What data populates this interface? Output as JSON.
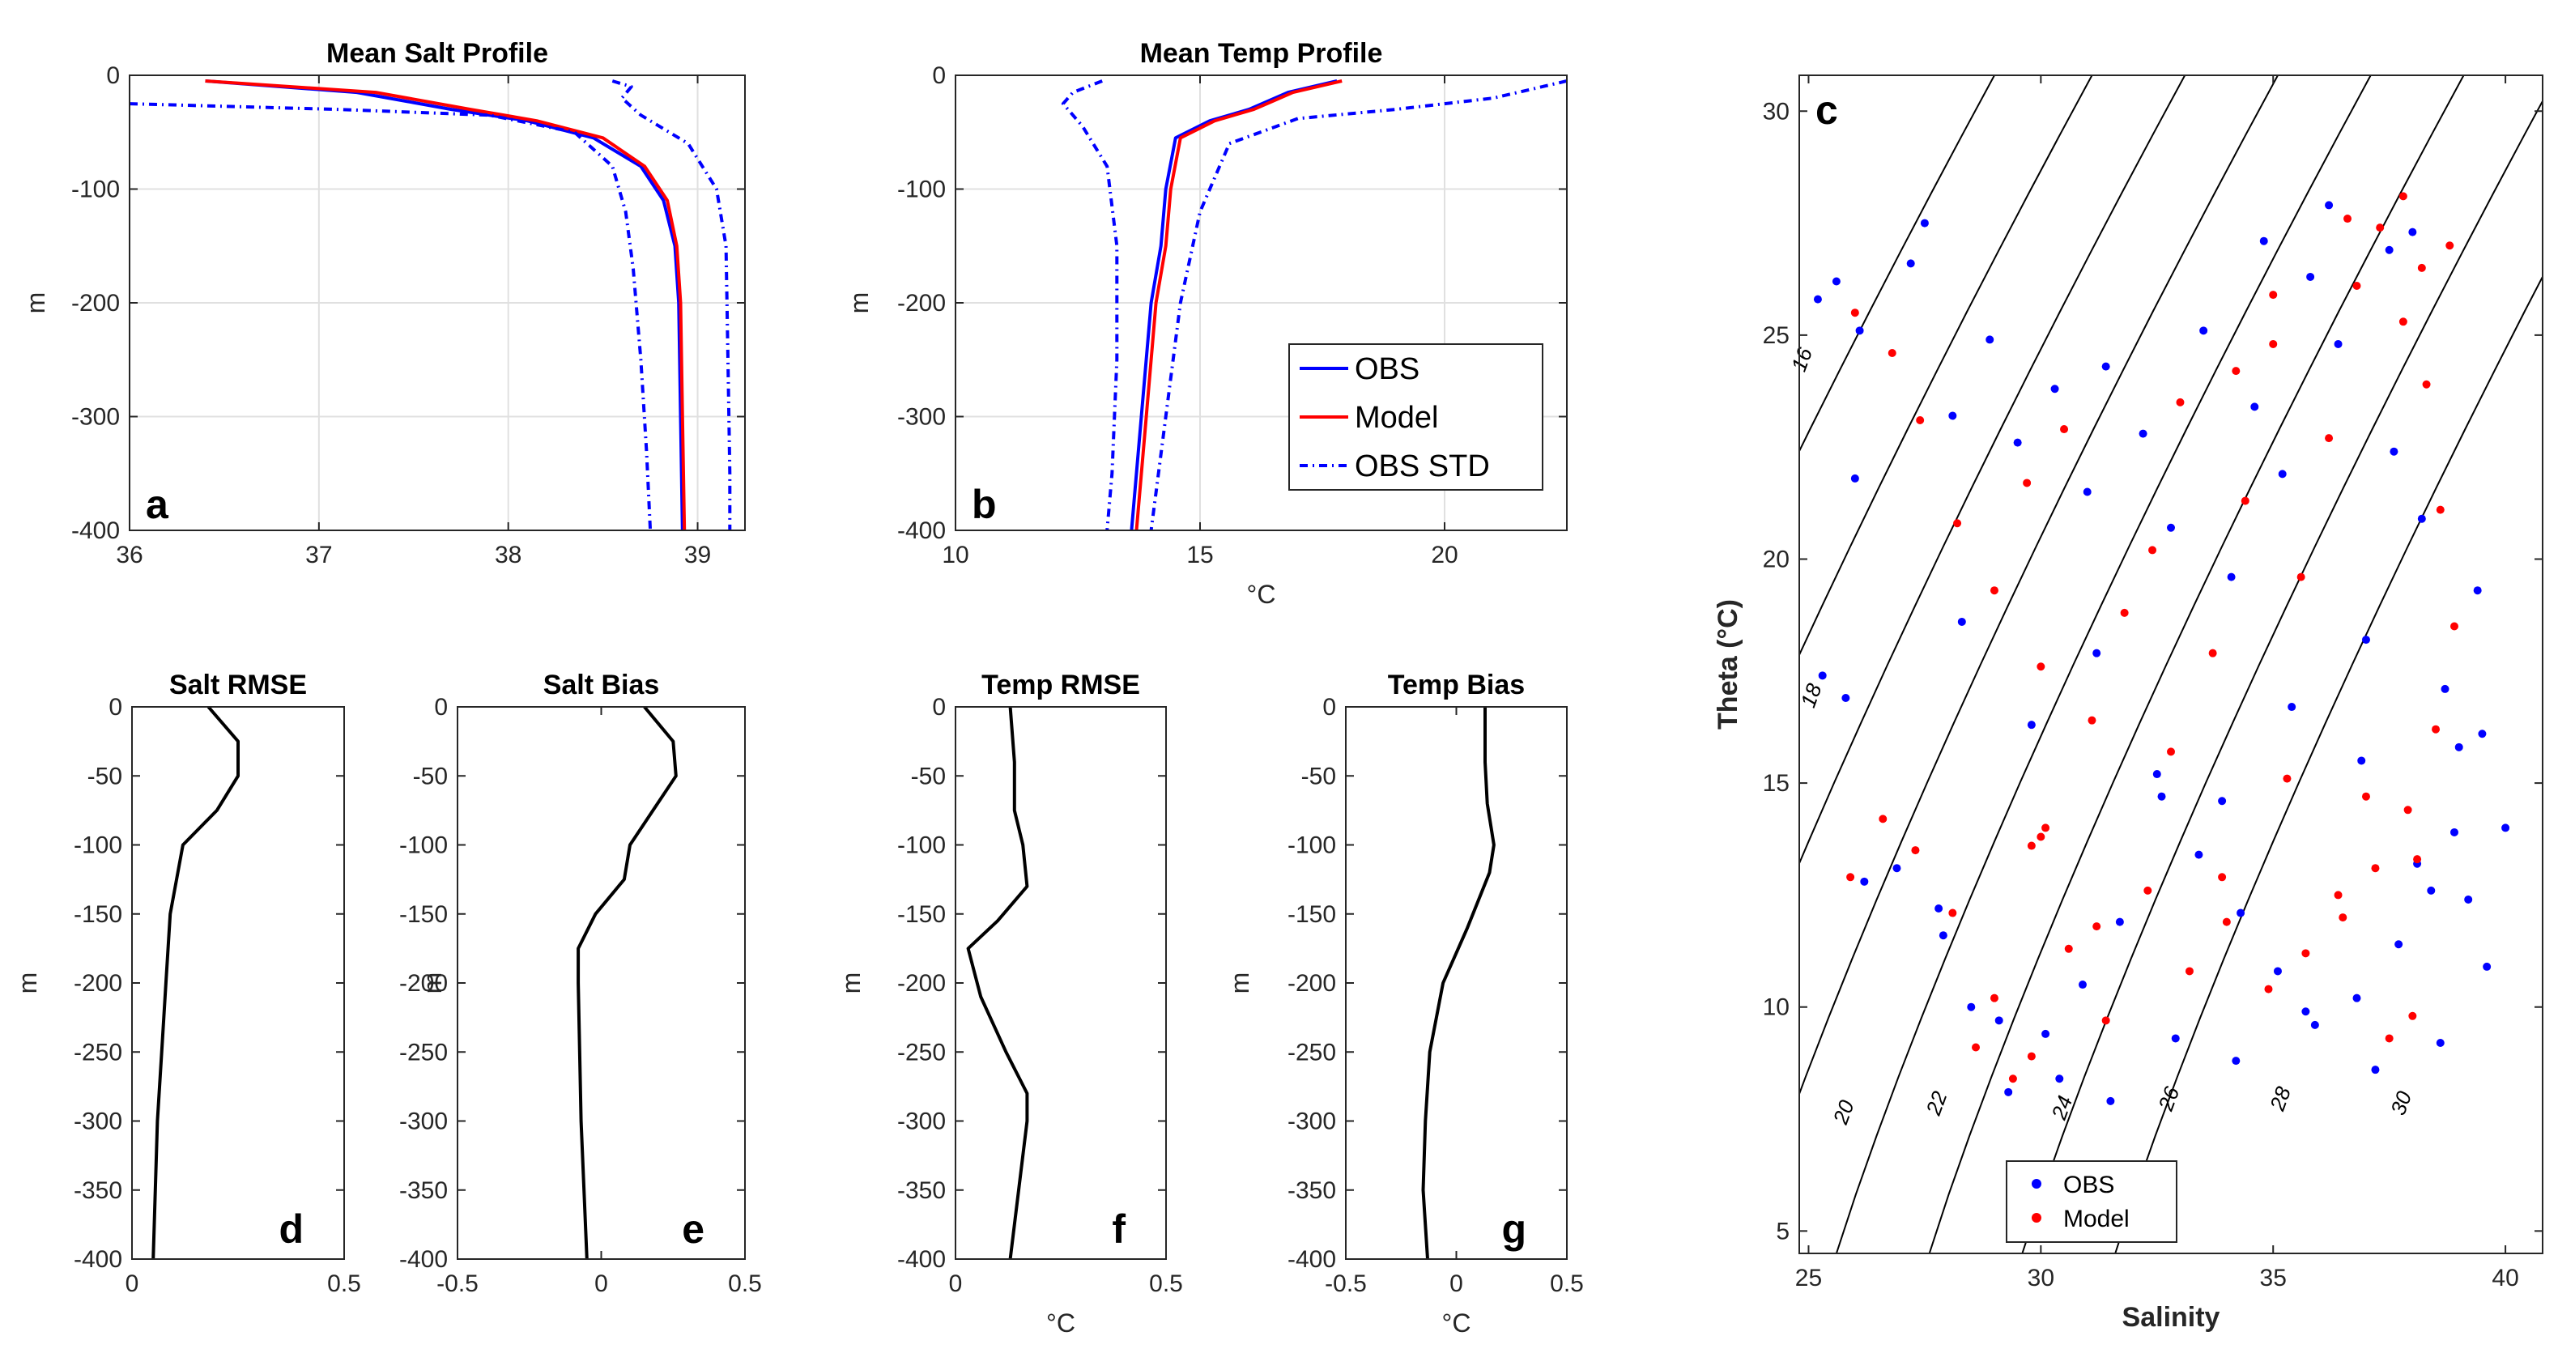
{
  "figure": {
    "panel_letters": [
      "a",
      "b",
      "c",
      "d",
      "e",
      "f",
      "g"
    ],
    "celsius_unit": "°C"
  },
  "chart_data": [
    {
      "id": "a",
      "type": "line",
      "title": "Mean Salt Profile",
      "xlabel": "",
      "ylabel": "m",
      "xlim": [
        36,
        39.25
      ],
      "ylim": [
        -400,
        0
      ],
      "xticks": [
        "36",
        "37",
        "38",
        "39"
      ],
      "yticks": [
        "0",
        "-100",
        "-200",
        "-300",
        "-400"
      ],
      "grid": true,
      "series": [
        {
          "name": "OBS",
          "color": "#0000ff",
          "style": "solid",
          "x": [
            36.4,
            37.2,
            37.7,
            38.1,
            38.45,
            38.7,
            38.82,
            38.88,
            38.9,
            38.91,
            38.92
          ],
          "y": [
            -5,
            -15,
            -30,
            -40,
            -55,
            -80,
            -110,
            -150,
            -200,
            -300,
            -400
          ]
        },
        {
          "name": "Model",
          "color": "#ff0000",
          "style": "solid",
          "x": [
            36.4,
            37.3,
            37.8,
            38.15,
            38.5,
            38.72,
            38.84,
            38.89,
            38.91,
            38.92,
            38.93
          ],
          "y": [
            -5,
            -15,
            -30,
            -40,
            -55,
            -80,
            -110,
            -150,
            -200,
            -300,
            -400
          ]
        },
        {
          "name": "OBS STD",
          "color": "#0000ff",
          "style": "dashdot",
          "x": [
            36.0,
            37.1,
            37.9,
            38.35,
            38.55,
            38.62,
            38.66,
            38.7,
            38.73,
            38.75
          ],
          "y": [
            -25,
            -30,
            -35,
            -50,
            -80,
            -120,
            -170,
            -250,
            -330,
            -400
          ]
        },
        {
          "name": "OBS STD upper",
          "color": "#0000ff",
          "style": "dashdot",
          "x": [
            38.55,
            38.65,
            38.6,
            38.7,
            38.95,
            39.1,
            39.15,
            39.16,
            39.17,
            39.17
          ],
          "y": [
            -5,
            -10,
            -20,
            -35,
            -60,
            -100,
            -150,
            -250,
            -350,
            -400
          ]
        }
      ]
    },
    {
      "id": "b",
      "type": "line",
      "title": "Mean Temp Profile",
      "xlabel": "°C",
      "ylabel": "m",
      "xlim": [
        10,
        22.5
      ],
      "ylim": [
        -400,
        0
      ],
      "xticks": [
        "10",
        "15",
        "20"
      ],
      "yticks": [
        "0",
        "-100",
        "-200",
        "-300",
        "-400"
      ],
      "grid": true,
      "legend": [
        "OBS",
        "Model",
        "OBS STD"
      ],
      "series": [
        {
          "name": "OBS",
          "color": "#0000ff",
          "style": "solid",
          "x": [
            17.8,
            16.8,
            16.0,
            15.2,
            14.5,
            14.3,
            14.2,
            14.0,
            13.8,
            13.6
          ],
          "y": [
            -5,
            -15,
            -30,
            -40,
            -55,
            -100,
            -150,
            -200,
            -300,
            -400
          ]
        },
        {
          "name": "Model",
          "color": "#ff0000",
          "style": "solid",
          "x": [
            17.9,
            16.9,
            16.1,
            15.3,
            14.6,
            14.4,
            14.3,
            14.1,
            13.9,
            13.7
          ],
          "y": [
            -5,
            -15,
            -30,
            -40,
            -55,
            -100,
            -150,
            -200,
            -300,
            -400
          ]
        },
        {
          "name": "OBS STD lower",
          "color": "#0000ff",
          "style": "dashdot",
          "x": [
            13.0,
            12.4,
            12.2,
            12.6,
            13.1,
            13.3,
            13.3,
            13.2,
            13.1
          ],
          "y": [
            -5,
            -15,
            -25,
            -45,
            -80,
            -150,
            -250,
            -350,
            -400
          ]
        },
        {
          "name": "OBS STD upper",
          "color": "#0000ff",
          "style": "dashdot",
          "x": [
            22.5,
            21.0,
            19.0,
            17.0,
            15.6,
            15.0,
            14.6,
            14.3,
            14.0
          ],
          "y": [
            -5,
            -20,
            -30,
            -38,
            -60,
            -120,
            -200,
            -300,
            -400
          ]
        }
      ]
    },
    {
      "id": "c",
      "type": "scatter",
      "title": "",
      "xlabel": "Salinity",
      "ylabel": "Theta (°C)",
      "xlim": [
        24.8,
        40.8
      ],
      "ylim": [
        4.5,
        30.8
      ],
      "xticks": [
        "25",
        "30",
        "35",
        "40"
      ],
      "yticks": [
        "5",
        "10",
        "15",
        "20",
        "25",
        "30"
      ],
      "grid": false,
      "legend": [
        "OBS",
        "Model"
      ],
      "density_contours": [
        "16",
        "18",
        "20",
        "22",
        "24",
        "26",
        "28",
        "30"
      ],
      "series": [
        {
          "name": "OBS",
          "color": "#0000ff",
          "x": [
            25.2,
            25.6,
            26.1,
            27.2,
            27.5,
            28.1,
            28.9,
            29.5,
            30.3,
            31.0,
            31.4,
            32.2,
            32.8,
            33.5,
            34.1,
            34.6,
            35.2,
            35.8,
            36.4,
            37.0,
            37.6,
            38.2,
            38.7,
            39.0,
            39.4,
            38.9,
            38.4,
            37.7,
            36.8,
            35.9,
            35.1,
            34.3,
            33.4,
            32.6,
            31.7,
            30.9,
            30.1,
            29.3,
            28.5,
            27.8,
            26.9,
            26.2,
            25.8,
            25.3,
            26.0,
            28.3,
            29.8,
            31.2,
            32.5,
            33.9,
            35.4,
            36.9,
            38.1,
            39.2,
            39.6,
            38.6,
            37.2,
            35.7,
            34.2,
            32.9,
            31.5,
            30.4,
            29.1,
            27.9,
            38.0,
            37.5,
            39.5,
            40.0,
            36.2,
            34.8
          ],
          "y": [
            25.8,
            26.2,
            25.1,
            26.6,
            27.5,
            23.2,
            24.9,
            22.6,
            23.8,
            21.5,
            24.3,
            22.8,
            20.7,
            25.1,
            19.6,
            23.4,
            21.9,
            26.3,
            24.8,
            18.2,
            22.4,
            20.9,
            17.1,
            15.8,
            19.3,
            13.9,
            12.6,
            11.4,
            10.2,
            9.6,
            10.8,
            12.1,
            13.4,
            14.7,
            11.9,
            10.5,
            9.4,
            8.1,
            10.0,
            12.2,
            13.1,
            12.8,
            16.9,
            17.4,
            21.8,
            18.6,
            16.3,
            17.9,
            15.2,
            14.6,
            16.7,
            15.5,
            13.2,
            12.4,
            10.9,
            9.2,
            8.6,
            9.9,
            8.8,
            9.3,
            7.9,
            8.4,
            9.7,
            11.6,
            27.3,
            26.9,
            16.1,
            14.0,
            27.9,
            27.1
          ]
        },
        {
          "name": "Model",
          "color": "#ff0000",
          "x": [
            26.0,
            26.8,
            27.4,
            28.2,
            29.0,
            29.7,
            30.0,
            30.5,
            31.1,
            31.8,
            32.4,
            33.0,
            33.7,
            34.4,
            35.0,
            35.6,
            36.2,
            36.8,
            37.3,
            37.8,
            38.3,
            38.6,
            38.9,
            38.5,
            37.9,
            37.2,
            36.5,
            35.7,
            34.9,
            34.0,
            33.2,
            32.3,
            31.4,
            30.6,
            29.8,
            29.0,
            28.1,
            27.3,
            26.6,
            25.9,
            30.0,
            29.8,
            30.1,
            32.8,
            35.3,
            37.0,
            38.1,
            36.4,
            33.9,
            31.2,
            29.4,
            28.6,
            37.5,
            38.0,
            37.8,
            36.6,
            35.0,
            34.2,
            38.8,
            38.2
          ],
          "y": [
            25.5,
            24.6,
            23.1,
            20.8,
            19.3,
            21.7,
            17.6,
            22.9,
            16.4,
            18.8,
            20.2,
            23.5,
            17.9,
            21.3,
            24.8,
            19.6,
            22.7,
            26.1,
            27.4,
            25.3,
            23.9,
            21.1,
            18.5,
            16.2,
            14.4,
            13.1,
            12.0,
            11.2,
            10.4,
            11.9,
            10.8,
            12.6,
            9.7,
            11.3,
            8.9,
            10.2,
            12.1,
            13.5,
            14.2,
            12.9,
            13.8,
            13.6,
            14.0,
            15.7,
            15.1,
            14.7,
            13.3,
            12.5,
            12.9,
            11.8,
            8.4,
            9.1,
            9.3,
            9.8,
            28.1,
            27.6,
            25.9,
            24.2,
            27.0,
            26.5
          ]
        }
      ]
    },
    {
      "id": "d",
      "type": "line",
      "title": "Salt RMSE",
      "xlabel": "",
      "ylabel": "m",
      "xlim": [
        0,
        0.5
      ],
      "ylim": [
        -400,
        0
      ],
      "xticks": [
        "0",
        "0.5"
      ],
      "yticks": [
        "0",
        "-50",
        "-100",
        "-150",
        "-200",
        "-250",
        "-300",
        "-350",
        "-400"
      ],
      "grid": false,
      "series": [
        {
          "name": "Salt RMSE",
          "color": "#000000",
          "style": "solid",
          "x": [
            0.18,
            0.25,
            0.25,
            0.2,
            0.12,
            0.09,
            0.08,
            0.07,
            0.06,
            0.05
          ],
          "y": [
            0,
            -25,
            -50,
            -75,
            -100,
            -150,
            -200,
            -250,
            -300,
            -400
          ]
        }
      ]
    },
    {
      "id": "e",
      "type": "line",
      "title": "Salt Bias",
      "xlabel": "",
      "ylabel": "m",
      "xlim": [
        -0.5,
        0.5
      ],
      "ylim": [
        -400,
        0
      ],
      "xticks": [
        "-0.5",
        "0",
        "0.5"
      ],
      "yticks": [
        "0",
        "-50",
        "-100",
        "-150",
        "-200",
        "-250",
        "-300",
        "-350",
        "-400"
      ],
      "grid": false,
      "series": [
        {
          "name": "Salt Bias",
          "color": "#000000",
          "style": "solid",
          "x": [
            0.15,
            0.25,
            0.26,
            0.18,
            0.1,
            0.08,
            -0.02,
            -0.08,
            -0.08,
            -0.07,
            -0.05
          ],
          "y": [
            0,
            -25,
            -50,
            -75,
            -100,
            -125,
            -150,
            -175,
            -200,
            -300,
            -400
          ]
        }
      ]
    },
    {
      "id": "f",
      "type": "line",
      "title": "Temp RMSE",
      "xlabel": "°C",
      "ylabel": "m",
      "xlim": [
        0,
        0.5
      ],
      "ylim": [
        -400,
        0
      ],
      "xticks": [
        "0",
        "0.5"
      ],
      "yticks": [
        "0",
        "-50",
        "-100",
        "-150",
        "-200",
        "-250",
        "-300",
        "-350",
        "-400"
      ],
      "grid": false,
      "series": [
        {
          "name": "Temp RMSE",
          "color": "#000000",
          "style": "solid",
          "x": [
            0.13,
            0.14,
            0.14,
            0.16,
            0.17,
            0.1,
            0.03,
            0.06,
            0.12,
            0.17,
            0.17,
            0.15,
            0.13
          ],
          "y": [
            0,
            -40,
            -75,
            -100,
            -130,
            -155,
            -175,
            -210,
            -250,
            -280,
            -300,
            -350,
            -400
          ]
        }
      ]
    },
    {
      "id": "g",
      "type": "line",
      "title": "Temp Bias",
      "xlabel": "°C",
      "ylabel": "m",
      "xlim": [
        -0.5,
        0.5
      ],
      "ylim": [
        -400,
        0
      ],
      "xticks": [
        "-0.5",
        "0",
        "0.5"
      ],
      "yticks": [
        "0",
        "-50",
        "-100",
        "-150",
        "-200",
        "-250",
        "-300",
        "-350",
        "-400"
      ],
      "grid": false,
      "series": [
        {
          "name": "Temp Bias",
          "color": "#000000",
          "style": "solid",
          "x": [
            0.13,
            0.13,
            0.14,
            0.17,
            0.15,
            0.05,
            -0.06,
            -0.12,
            -0.14,
            -0.15,
            -0.13
          ],
          "y": [
            0,
            -40,
            -70,
            -100,
            -120,
            -160,
            -200,
            -250,
            -300,
            -350,
            -400
          ]
        }
      ]
    }
  ]
}
